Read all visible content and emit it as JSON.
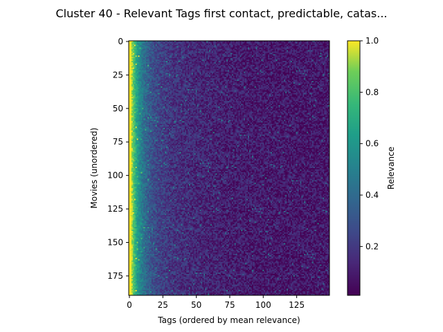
{
  "chart_data": {
    "type": "heatmap",
    "title": "Cluster 40 - Relevant Tags first contact, predictable, catas...",
    "xlabel": "Tags (ordered by mean relevance)",
    "ylabel": "Movies (unordered)",
    "n_cols": 150,
    "n_rows": 190,
    "x_ticks": [
      0,
      25,
      50,
      75,
      100,
      125
    ],
    "y_ticks": [
      0,
      25,
      50,
      75,
      100,
      125,
      150,
      175
    ],
    "colorbar": {
      "label": "Relevance",
      "range": [
        0.01,
        1.0
      ],
      "ticks": [
        0.2,
        0.4,
        0.6,
        0.8,
        1.0
      ],
      "tick_labels": [
        "0.2",
        "0.4",
        "0.6",
        "0.8",
        "1.0"
      ],
      "colormap": "viridis"
    },
    "grid": false
  }
}
